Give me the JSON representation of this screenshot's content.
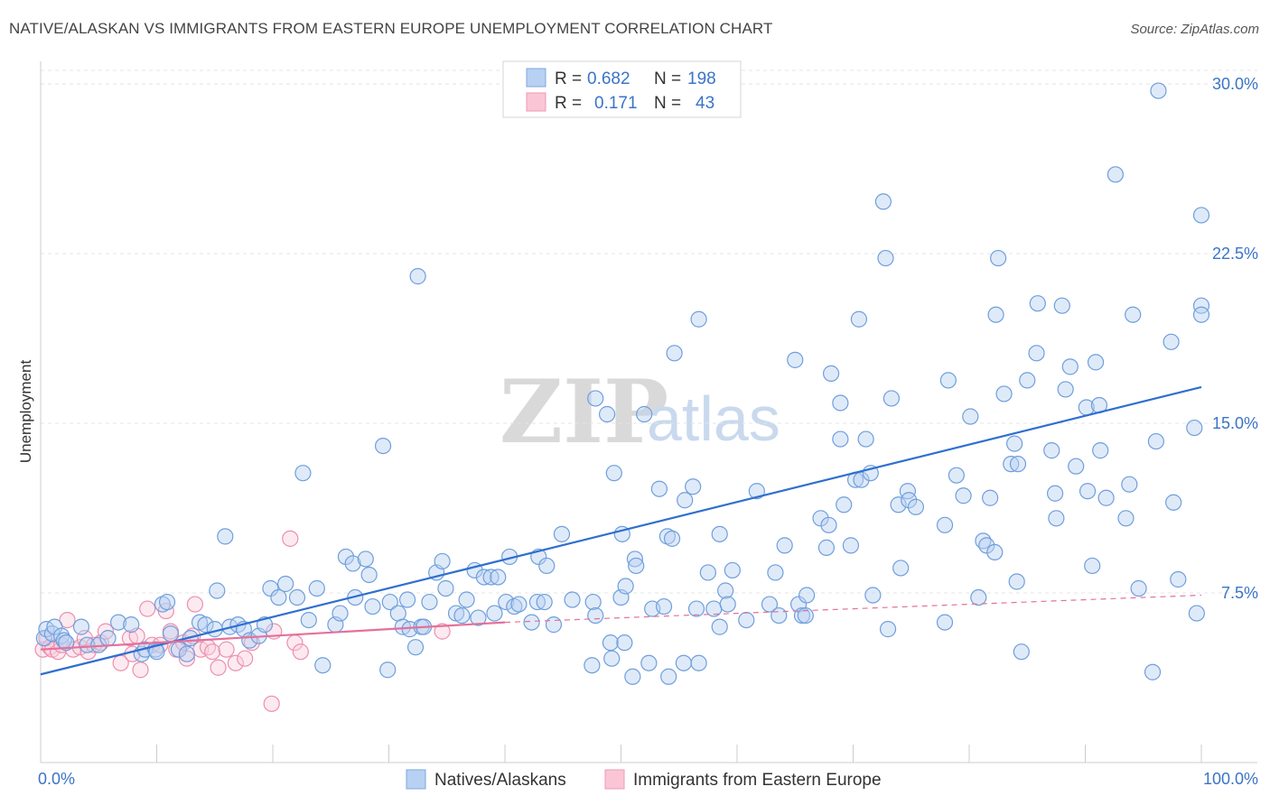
{
  "header": {
    "title": "NATIVE/ALASKAN VS IMMIGRANTS FROM EASTERN EUROPE UNEMPLOYMENT CORRELATION CHART",
    "source": "Source: ZipAtlas.com"
  },
  "watermark": {
    "zip": "ZIP",
    "atlas": "atlas"
  },
  "legend": {
    "rows": [
      {
        "r_label": "R =",
        "r_value": "0.682",
        "n_label": "N =",
        "n_value": "198",
        "color": "#a9c6ee"
      },
      {
        "r_label": "R =",
        "r_value": "0.171",
        "n_label": "N =",
        "n_value": "43",
        "color": "#f7b9cb"
      }
    ]
  },
  "bottom_legend": {
    "items": [
      {
        "label": "Natives/Alaskans",
        "color": "#a9c6ee"
      },
      {
        "label": "Immigrants from Eastern Europe",
        "color": "#f7b9cb"
      }
    ]
  },
  "chart_data": {
    "type": "scatter",
    "title": "NATIVE/ALASKAN VS IMMIGRANTS FROM EASTERN EUROPE UNEMPLOYMENT CORRELATION CHART",
    "xlabel": "",
    "ylabel": "Unemployment",
    "xlim": [
      0,
      100
    ],
    "ylim": [
      0,
      31
    ],
    "x_tick_labels": [
      "0.0%",
      "100.0%"
    ],
    "y_ticks": [
      7.5,
      15.0,
      22.5,
      30.0
    ],
    "y_tick_labels": [
      "7.5%",
      "15.0%",
      "22.5%",
      "30.0%"
    ],
    "grid": true,
    "legend_position": "top-center",
    "colors": {
      "natives": "#6f9fdc",
      "natives_line": "#2f6fd0",
      "immigrants": "#ec8fae",
      "immigrants_line": "#e4709a"
    },
    "series": [
      {
        "name": "Natives/Alaskans",
        "trend": {
          "x": [
            0,
            100
          ],
          "y": [
            3.9,
            16.6
          ]
        },
        "points": [
          [
            0.3,
            5.5
          ],
          [
            0.5,
            5.9
          ],
          [
            1,
            5.7
          ],
          [
            1.2,
            6.0
          ],
          [
            1.8,
            5.6
          ],
          [
            2,
            5.4
          ],
          [
            2.2,
            5.3
          ],
          [
            3.5,
            6.0
          ],
          [
            4,
            5.2
          ],
          [
            5,
            5.2
          ],
          [
            5.8,
            5.5
          ],
          [
            6.7,
            6.2
          ],
          [
            7.8,
            6.1
          ],
          [
            8.7,
            4.8
          ],
          [
            9,
            5.0
          ],
          [
            9.9,
            5.0
          ],
          [
            10,
            4.9
          ],
          [
            10.5,
            7.0
          ],
          [
            10.9,
            7.1
          ],
          [
            11.2,
            5.7
          ],
          [
            11.9,
            5.0
          ],
          [
            12.6,
            4.8
          ],
          [
            12.9,
            5.5
          ],
          [
            13.7,
            6.2
          ],
          [
            14.2,
            6.1
          ],
          [
            15,
            5.9
          ],
          [
            15.2,
            7.6
          ],
          [
            15.9,
            10.0
          ],
          [
            16.3,
            6.0
          ],
          [
            17,
            6.1
          ],
          [
            17.5,
            5.9
          ],
          [
            18,
            5.4
          ],
          [
            18.8,
            5.6
          ],
          [
            19.3,
            6.1
          ],
          [
            19.8,
            7.7
          ],
          [
            20.5,
            7.3
          ],
          [
            21.1,
            7.9
          ],
          [
            22.1,
            7.3
          ],
          [
            22.6,
            12.8
          ],
          [
            23.1,
            6.3
          ],
          [
            23.8,
            7.7
          ],
          [
            24.3,
            4.3
          ],
          [
            25.4,
            6.1
          ],
          [
            25.8,
            6.6
          ],
          [
            26.3,
            9.1
          ],
          [
            26.9,
            8.8
          ],
          [
            27.1,
            7.3
          ],
          [
            28,
            9.0
          ],
          [
            28.3,
            8.3
          ],
          [
            28.6,
            6.9
          ],
          [
            29.5,
            14.0
          ],
          [
            29.9,
            4.1
          ],
          [
            30.1,
            7.1
          ],
          [
            30.8,
            6.6
          ],
          [
            31.2,
            6.0
          ],
          [
            31.6,
            7.2
          ],
          [
            31.8,
            5.9
          ],
          [
            32.3,
            5.1
          ],
          [
            32.8,
            6.0
          ],
          [
            33,
            6.0
          ],
          [
            32.5,
            21.5
          ],
          [
            33.5,
            7.1
          ],
          [
            34.1,
            8.4
          ],
          [
            34.6,
            8.9
          ],
          [
            34.9,
            7.7
          ],
          [
            35.8,
            6.6
          ],
          [
            36.3,
            6.5
          ],
          [
            36.7,
            7.2
          ],
          [
            37.4,
            8.5
          ],
          [
            37.7,
            6.4
          ],
          [
            38.2,
            8.2
          ],
          [
            38.8,
            8.2
          ],
          [
            39.1,
            6.6
          ],
          [
            39.4,
            8.2
          ],
          [
            40.1,
            7.1
          ],
          [
            40.4,
            9.1
          ],
          [
            40.8,
            6.9
          ],
          [
            41.2,
            7.0
          ],
          [
            42.3,
            6.2
          ],
          [
            42.8,
            7.1
          ],
          [
            42.9,
            9.1
          ],
          [
            43.4,
            7.1
          ],
          [
            43.6,
            8.7
          ],
          [
            44.2,
            6.1
          ],
          [
            44.9,
            10.1
          ],
          [
            45.8,
            7.2
          ],
          [
            47.6,
            7.1
          ],
          [
            47.8,
            16.1
          ],
          [
            47.8,
            6.5
          ],
          [
            47.5,
            4.3
          ],
          [
            48.8,
            15.4
          ],
          [
            49.1,
            5.3
          ],
          [
            49.2,
            4.6
          ],
          [
            49.4,
            12.8
          ],
          [
            50,
            7.3
          ],
          [
            50.1,
            10.1
          ],
          [
            50.4,
            7.8
          ],
          [
            50.3,
            5.3
          ],
          [
            51,
            3.8
          ],
          [
            51.2,
            9.0
          ],
          [
            51.3,
            8.7
          ],
          [
            52,
            15.4
          ],
          [
            52.4,
            4.4
          ],
          [
            52.7,
            6.8
          ],
          [
            53.3,
            12.1
          ],
          [
            53.7,
            6.9
          ],
          [
            54,
            10.0
          ],
          [
            54.1,
            3.8
          ],
          [
            54.4,
            9.9
          ],
          [
            54.6,
            18.1
          ],
          [
            55.4,
            4.4
          ],
          [
            55.5,
            11.6
          ],
          [
            56.2,
            12.2
          ],
          [
            56.5,
            6.8
          ],
          [
            56.7,
            19.6
          ],
          [
            56.7,
            4.4
          ],
          [
            57.5,
            8.4
          ],
          [
            58,
            6.8
          ],
          [
            58.5,
            6.0
          ],
          [
            58.5,
            10.1
          ],
          [
            59,
            7.6
          ],
          [
            59.2,
            7.0
          ],
          [
            59.6,
            8.5
          ],
          [
            60.8,
            6.3
          ],
          [
            61.7,
            12.0
          ],
          [
            62.8,
            7.0
          ],
          [
            63.3,
            8.4
          ],
          [
            63.6,
            6.5
          ],
          [
            64.1,
            9.6
          ],
          [
            65,
            17.8
          ],
          [
            65.3,
            7.0
          ],
          [
            65.6,
            6.5
          ],
          [
            65.9,
            6.5
          ],
          [
            66,
            7.4
          ],
          [
            67.2,
            10.8
          ],
          [
            67.7,
            9.5
          ],
          [
            67.9,
            10.5
          ],
          [
            68.1,
            17.2
          ],
          [
            68.9,
            14.3
          ],
          [
            68.9,
            15.9
          ],
          [
            69.2,
            11.4
          ],
          [
            69.8,
            9.6
          ],
          [
            70.2,
            12.5
          ],
          [
            70.7,
            12.5
          ],
          [
            70.5,
            19.6
          ],
          [
            71.1,
            14.3
          ],
          [
            71.5,
            12.8
          ],
          [
            71.7,
            7.4
          ],
          [
            72.6,
            24.8
          ],
          [
            72.8,
            22.3
          ],
          [
            73,
            5.9
          ],
          [
            73.3,
            16.1
          ],
          [
            73.9,
            11.4
          ],
          [
            74.1,
            8.6
          ],
          [
            74.7,
            12.0
          ],
          [
            74.8,
            11.6
          ],
          [
            75.4,
            11.3
          ],
          [
            77.9,
            10.5
          ],
          [
            77.9,
            6.2
          ],
          [
            78.2,
            16.9
          ],
          [
            78.9,
            12.7
          ],
          [
            79.5,
            11.8
          ],
          [
            80.1,
            15.3
          ],
          [
            80.8,
            7.3
          ],
          [
            81.2,
            9.8
          ],
          [
            81.5,
            9.6
          ],
          [
            81.8,
            11.7
          ],
          [
            82.2,
            9.3
          ],
          [
            82.3,
            19.8
          ],
          [
            82.5,
            22.3
          ],
          [
            83,
            16.3
          ],
          [
            83.6,
            13.2
          ],
          [
            83.9,
            14.1
          ],
          [
            84.1,
            8.0
          ],
          [
            84.2,
            13.2
          ],
          [
            84.5,
            4.9
          ],
          [
            85,
            16.9
          ],
          [
            85.8,
            18.1
          ],
          [
            85.9,
            20.3
          ],
          [
            87.1,
            13.8
          ],
          [
            87.4,
            11.9
          ],
          [
            87.5,
            10.8
          ],
          [
            88,
            20.2
          ],
          [
            88.3,
            16.5
          ],
          [
            88.7,
            17.5
          ],
          [
            89.2,
            13.1
          ],
          [
            90.1,
            15.7
          ],
          [
            90.2,
            12.0
          ],
          [
            90.6,
            8.7
          ],
          [
            90.9,
            17.7
          ],
          [
            91.2,
            15.8
          ],
          [
            91.3,
            13.8
          ],
          [
            91.8,
            11.7
          ],
          [
            92.6,
            26.0
          ],
          [
            93.5,
            10.8
          ],
          [
            93.8,
            12.3
          ],
          [
            94.1,
            19.8
          ],
          [
            94.6,
            7.7
          ],
          [
            95.8,
            4.0
          ],
          [
            96.1,
            14.2
          ],
          [
            96.3,
            29.7
          ],
          [
            97.4,
            18.6
          ],
          [
            97.6,
            11.5
          ],
          [
            98,
            8.1
          ],
          [
            99.4,
            14.8
          ],
          [
            99.6,
            6.6
          ],
          [
            100,
            24.2
          ],
          [
            100,
            20.2
          ],
          [
            100,
            19.8
          ]
        ]
      },
      {
        "name": "Immigrants from Eastern Europe",
        "trend": {
          "x": [
            0,
            40
          ],
          "y": [
            5.0,
            6.2
          ],
          "dashed_to": {
            "x": 100,
            "y": 7.4
          }
        },
        "points": [
          [
            0.2,
            5.0
          ],
          [
            0.5,
            5.5
          ],
          [
            0.8,
            5.1
          ],
          [
            1,
            5.0
          ],
          [
            1.5,
            4.9
          ],
          [
            1.8,
            5.2
          ],
          [
            2.3,
            6.3
          ],
          [
            2.8,
            5.0
          ],
          [
            3.4,
            5.1
          ],
          [
            3.8,
            5.5
          ],
          [
            4.1,
            4.9
          ],
          [
            4.6,
            5.2
          ],
          [
            5.2,
            5.3
          ],
          [
            5.6,
            5.8
          ],
          [
            6.9,
            4.4
          ],
          [
            7.7,
            5.5
          ],
          [
            7.9,
            4.8
          ],
          [
            8.3,
            5.6
          ],
          [
            8.6,
            4.1
          ],
          [
            9.2,
            6.8
          ],
          [
            9.6,
            5.2
          ],
          [
            10.3,
            5.2
          ],
          [
            10.8,
            6.7
          ],
          [
            11.2,
            5.8
          ],
          [
            11.7,
            5.0
          ],
          [
            12.3,
            5.3
          ],
          [
            12.6,
            4.6
          ],
          [
            13.1,
            5.6
          ],
          [
            13.3,
            7.0
          ],
          [
            13.8,
            5.0
          ],
          [
            14.4,
            5.1
          ],
          [
            14.8,
            4.9
          ],
          [
            15.3,
            4.2
          ],
          [
            16,
            5.0
          ],
          [
            16.8,
            4.4
          ],
          [
            17.6,
            4.6
          ],
          [
            18.2,
            5.3
          ],
          [
            19.9,
            2.6
          ],
          [
            20.1,
            5.8
          ],
          [
            21.5,
            9.9
          ],
          [
            21.9,
            5.3
          ],
          [
            22.4,
            4.9
          ],
          [
            34.6,
            5.8
          ]
        ]
      }
    ]
  }
}
